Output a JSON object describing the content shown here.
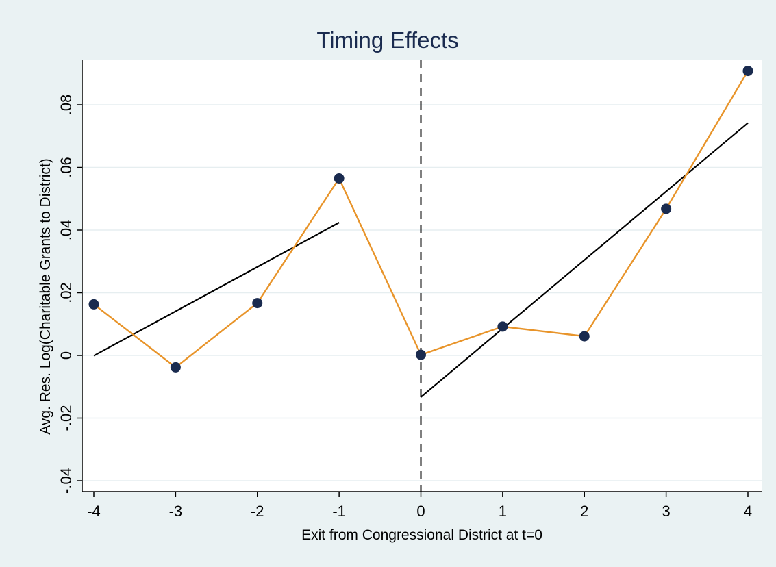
{
  "chart_data": {
    "type": "line",
    "title": "Timing Effects",
    "xlabel": "Exit from Congressional District at t=0",
    "ylabel": "Avg. Res. Log(Charitable Grants to District)",
    "xlim": [
      -4,
      4
    ],
    "ylim": [
      -0.04,
      0.09
    ],
    "x_ticks": [
      -4,
      -3,
      -2,
      -1,
      0,
      1,
      2,
      3,
      4
    ],
    "x_tick_labels": [
      "-4",
      "-3",
      "-2",
      "-1",
      "0",
      "1",
      "2",
      "3",
      "4"
    ],
    "y_ticks": [
      -0.04,
      -0.02,
      0,
      0.02,
      0.04,
      0.06,
      0.08
    ],
    "y_tick_labels": [
      "-.04",
      "-.02",
      "0",
      ".02",
      ".04",
      ".06",
      ".08"
    ],
    "grid": "horizontal",
    "reference_line": {
      "x": 0,
      "style": "dashed"
    },
    "series": [
      {
        "type": "line+markers",
        "x": [
          -4,
          -3,
          -2,
          -1,
          0,
          1,
          2,
          3,
          4
        ],
        "values": [
          0.0163,
          -0.0038,
          0.0167,
          0.0565,
          0.0002,
          0.0092,
          0.0061,
          0.0468,
          0.0908
        ],
        "color": "#e8942a",
        "marker_color": "#1a2b4f"
      },
      {
        "type": "fit",
        "x": [
          -4,
          -1
        ],
        "values": [
          -0.0001,
          0.0424
        ],
        "color": "#000000"
      },
      {
        "type": "fit",
        "x": [
          0,
          4
        ],
        "values": [
          -0.0133,
          0.0742
        ],
        "color": "#000000"
      }
    ]
  }
}
